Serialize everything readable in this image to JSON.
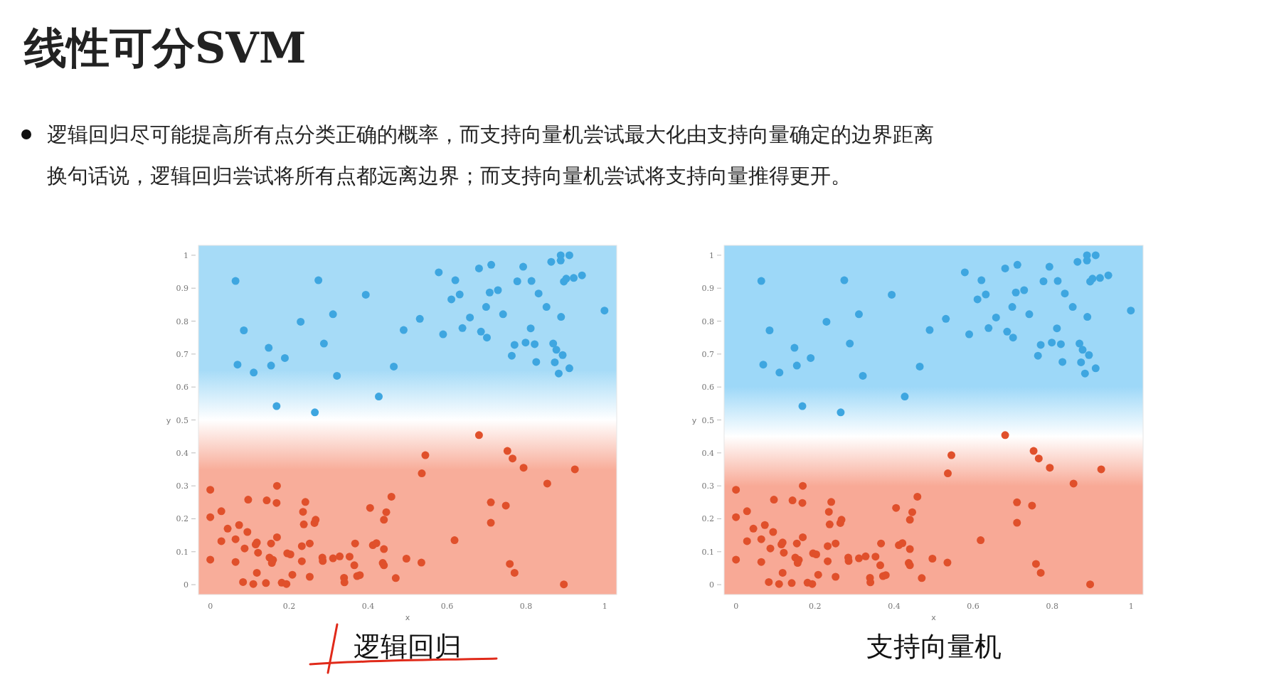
{
  "chart_data": [
    {
      "type": "other",
      "title": "线性可分SVM",
      "annotations": [
        "逻辑回归尽可能提高所有点分类正确的概率，而支持向量机尝试最大化由支持向量确定的边界距离",
        "换句话说，逻辑回归尝试将所有点都远离边界；而支持向量机尝试将支持向量推得更开。"
      ]
    },
    {
      "type": "scatter",
      "title": "逻辑回归",
      "xlabel": "x",
      "ylabel": "y",
      "xlim": [
        -0.03,
        1.03
      ],
      "ylim": [
        -0.03,
        1.03
      ],
      "xticks": [
        0,
        0.2,
        0.4,
        0.6,
        0.8,
        1
      ],
      "yticks": [
        0,
        0.1,
        0.2,
        0.3,
        0.4,
        0.5,
        0.6,
        0.7,
        0.8,
        0.9,
        1
      ],
      "marker": "circle",
      "bands": [
        {
          "axis": "y",
          "from": 0.5,
          "to": 1.03,
          "color": "#a6dbf7"
        },
        {
          "axis": "y",
          "from": -0.03,
          "to": 0.5,
          "color": "#f8ad9a"
        }
      ],
      "series": [
        {
          "color": "#3ea6e0",
          "x": [
            0.064,
            0.085,
            0.069,
            0.11,
            0.148,
            0.154,
            0.189,
            0.168,
            0.229,
            0.274,
            0.265,
            0.288,
            0.311,
            0.321,
            0.394,
            0.427,
            0.465,
            0.49,
            0.531,
            0.579,
            0.59,
            0.611,
            0.621,
            0.632,
            0.639,
            0.658,
            0.681,
            0.686,
            0.699,
            0.701,
            0.708,
            0.712,
            0.729,
            0.742,
            0.764,
            0.771,
            0.778,
            0.793,
            0.799,
            0.812,
            0.814,
            0.822,
            0.826,
            0.832,
            0.852,
            0.864,
            0.869,
            0.873,
            0.877,
            0.883,
            0.888,
            0.888,
            0.889,
            0.893,
            0.896,
            0.902,
            0.91,
            0.91,
            0.921,
            0.942,
            0.999
          ],
          "values": [
            0.922,
            0.772,
            0.668,
            0.644,
            0.719,
            0.665,
            0.688,
            0.542,
            0.798,
            0.924,
            0.523,
            0.732,
            0.821,
            0.634,
            0.88,
            0.571,
            0.662,
            0.773,
            0.807,
            0.948,
            0.76,
            0.866,
            0.924,
            0.881,
            0.779,
            0.811,
            0.96,
            0.768,
            0.843,
            0.75,
            0.887,
            0.971,
            0.894,
            0.821,
            0.695,
            0.728,
            0.921,
            0.965,
            0.735,
            0.778,
            0.922,
            0.73,
            0.676,
            0.884,
            0.843,
            0.98,
            0.732,
            0.675,
            0.713,
            0.641,
            1.0,
            0.984,
            0.813,
            0.697,
            0.92,
            0.929,
            1.0,
            0.657,
            0.931,
            0.939,
            0.832
          ]
        },
        {
          "color": "#e0502b",
          "x": [
            0,
            0,
            0,
            0.028,
            0.028,
            0.044,
            0.064,
            0.064,
            0.073,
            0.083,
            0.087,
            0.094,
            0.096,
            0.109,
            0.115,
            0.118,
            0.118,
            0.121,
            0.141,
            0.143,
            0.15,
            0.154,
            0.156,
            0.159,
            0.168,
            0.169,
            0.169,
            0.181,
            0.193,
            0.195,
            0.203,
            0.208,
            0.232,
            0.232,
            0.235,
            0.237,
            0.241,
            0.252,
            0.252,
            0.264,
            0.267,
            0.284,
            0.285,
            0.311,
            0.328,
            0.339,
            0.34,
            0.353,
            0.365,
            0.367,
            0.372,
            0.379,
            0.405,
            0.412,
            0.421,
            0.44,
            0.44,
            0.437,
            0.44,
            0.446,
            0.459,
            0.47,
            0.497,
            0.535,
            0.536,
            0.545,
            0.619,
            0.681,
            0.711,
            0.711,
            0.749,
            0.753,
            0.759,
            0.766,
            0.771,
            0.794,
            0.854,
            0.896,
            0.924
          ],
          "values": [
            0.288,
            0.205,
            0.076,
            0.223,
            0.132,
            0.17,
            0.069,
            0.138,
            0.181,
            0.008,
            0.11,
            0.16,
            0.258,
            0.002,
            0.122,
            0.036,
            0.128,
            0.097,
            0.005,
            0.256,
            0.082,
            0.125,
            0.066,
            0.075,
            0.248,
            0.3,
            0.144,
            0.006,
            0.002,
            0.095,
            0.092,
            0.03,
            0.071,
            0.117,
            0.221,
            0.183,
            0.251,
            0.125,
            0.024,
            0.187,
            0.197,
            0.082,
            0.072,
            0.08,
            0.086,
            0.021,
            0.007,
            0.085,
            0.059,
            0.125,
            0.026,
            0.029,
            0.233,
            0.12,
            0.126,
            0.197,
            0.108,
            0.066,
            0.059,
            0.22,
            0.267,
            0.02,
            0.079,
            0.067,
            0.338,
            0.393,
            0.135,
            0.454,
            0.25,
            0.188,
            0.24,
            0.406,
            0.063,
            0.383,
            0.036,
            0.355,
            0.307,
            0.001,
            0.35
          ]
        }
      ]
    },
    {
      "type": "scatter",
      "title": "支持向量机",
      "xlabel": "x",
      "ylabel": "y",
      "xlim": [
        -0.03,
        1.03
      ],
      "ylim": [
        -0.03,
        1.03
      ],
      "xticks": [
        0,
        0.2,
        0.4,
        0.6,
        0.8,
        1
      ],
      "yticks": [
        0,
        0.1,
        0.2,
        0.3,
        0.4,
        0.5,
        0.6,
        0.7,
        0.8,
        0.9,
        1
      ],
      "marker": "circle",
      "bands": [
        {
          "axis": "y",
          "from": 0.45,
          "to": 1.03,
          "color": "#9dd8f8"
        },
        {
          "axis": "y",
          "from": -0.03,
          "to": 0.45,
          "color": "#f8a996"
        }
      ],
      "series": [
        {
          "color": "#3ea6e0",
          "x": [
            0.064,
            0.085,
            0.069,
            0.11,
            0.148,
            0.154,
            0.189,
            0.168,
            0.229,
            0.274,
            0.265,
            0.288,
            0.311,
            0.321,
            0.394,
            0.427,
            0.465,
            0.49,
            0.531,
            0.579,
            0.59,
            0.611,
            0.621,
            0.632,
            0.639,
            0.658,
            0.681,
            0.686,
            0.699,
            0.701,
            0.708,
            0.712,
            0.729,
            0.742,
            0.764,
            0.771,
            0.778,
            0.793,
            0.799,
            0.812,
            0.814,
            0.822,
            0.826,
            0.832,
            0.852,
            0.864,
            0.869,
            0.873,
            0.877,
            0.883,
            0.888,
            0.888,
            0.889,
            0.893,
            0.896,
            0.902,
            0.91,
            0.91,
            0.921,
            0.942,
            0.999
          ],
          "values": [
            0.922,
            0.772,
            0.668,
            0.644,
            0.719,
            0.665,
            0.688,
            0.542,
            0.798,
            0.924,
            0.523,
            0.732,
            0.821,
            0.634,
            0.88,
            0.571,
            0.662,
            0.773,
            0.807,
            0.948,
            0.76,
            0.866,
            0.924,
            0.881,
            0.779,
            0.811,
            0.96,
            0.768,
            0.843,
            0.75,
            0.887,
            0.971,
            0.894,
            0.821,
            0.695,
            0.728,
            0.921,
            0.965,
            0.735,
            0.778,
            0.922,
            0.73,
            0.676,
            0.884,
            0.843,
            0.98,
            0.732,
            0.675,
            0.713,
            0.641,
            1.0,
            0.984,
            0.813,
            0.697,
            0.92,
            0.929,
            1.0,
            0.657,
            0.931,
            0.939,
            0.832
          ]
        },
        {
          "color": "#e0502b",
          "x": [
            0,
            0,
            0,
            0.028,
            0.028,
            0.044,
            0.064,
            0.064,
            0.073,
            0.083,
            0.087,
            0.094,
            0.096,
            0.109,
            0.115,
            0.118,
            0.118,
            0.121,
            0.141,
            0.143,
            0.15,
            0.154,
            0.156,
            0.159,
            0.168,
            0.169,
            0.169,
            0.181,
            0.193,
            0.195,
            0.203,
            0.208,
            0.232,
            0.232,
            0.235,
            0.237,
            0.241,
            0.252,
            0.252,
            0.264,
            0.267,
            0.284,
            0.285,
            0.311,
            0.328,
            0.339,
            0.34,
            0.353,
            0.365,
            0.367,
            0.372,
            0.379,
            0.405,
            0.412,
            0.421,
            0.44,
            0.44,
            0.437,
            0.44,
            0.446,
            0.459,
            0.47,
            0.497,
            0.535,
            0.536,
            0.545,
            0.619,
            0.681,
            0.711,
            0.711,
            0.749,
            0.753,
            0.759,
            0.766,
            0.771,
            0.794,
            0.854,
            0.896,
            0.924
          ],
          "values": [
            0.288,
            0.205,
            0.076,
            0.223,
            0.132,
            0.17,
            0.069,
            0.138,
            0.181,
            0.008,
            0.11,
            0.16,
            0.258,
            0.002,
            0.122,
            0.036,
            0.128,
            0.097,
            0.005,
            0.256,
            0.082,
            0.125,
            0.066,
            0.075,
            0.248,
            0.3,
            0.144,
            0.006,
            0.002,
            0.095,
            0.092,
            0.03,
            0.071,
            0.117,
            0.221,
            0.183,
            0.251,
            0.125,
            0.024,
            0.187,
            0.197,
            0.082,
            0.072,
            0.08,
            0.086,
            0.021,
            0.007,
            0.085,
            0.059,
            0.125,
            0.026,
            0.029,
            0.233,
            0.12,
            0.126,
            0.197,
            0.108,
            0.066,
            0.059,
            0.22,
            0.267,
            0.02,
            0.079,
            0.067,
            0.338,
            0.393,
            0.135,
            0.454,
            0.25,
            0.188,
            0.24,
            0.406,
            0.063,
            0.383,
            0.036,
            0.355,
            0.307,
            0.001,
            0.35
          ]
        }
      ]
    }
  ]
}
